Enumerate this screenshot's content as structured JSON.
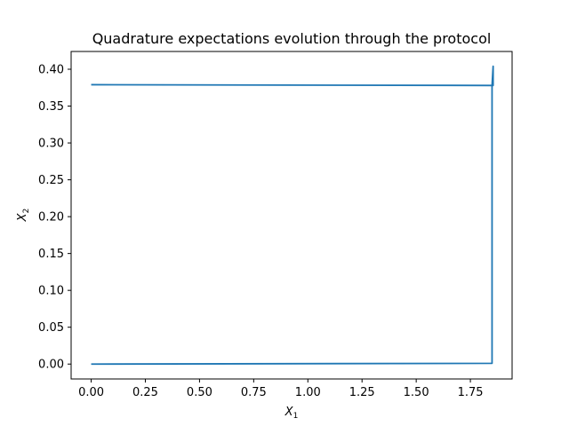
{
  "chart_data": {
    "type": "line",
    "title": "Quadrature expectations evolution through the protocol",
    "xlabel": {
      "base": "X",
      "subscript": "1"
    },
    "ylabel": {
      "base": "X",
      "subscript": "2"
    },
    "xlim": [
      -0.0925,
      1.9425
    ],
    "ylim": [
      -0.0202,
      0.4241
    ],
    "xticks": [
      "0.00",
      "0.25",
      "0.50",
      "0.75",
      "1.00",
      "1.25",
      "1.50",
      "1.75"
    ],
    "xtick_values": [
      0.0,
      0.25,
      0.5,
      0.75,
      1.0,
      1.25,
      1.5,
      1.75
    ],
    "yticks": [
      "0.00",
      "0.05",
      "0.10",
      "0.15",
      "0.20",
      "0.25",
      "0.30",
      "0.35",
      "0.40"
    ],
    "ytick_values": [
      0.0,
      0.05,
      0.1,
      0.15,
      0.2,
      0.25,
      0.3,
      0.35,
      0.4
    ],
    "grid": false,
    "legend": "none",
    "color": "#1f77b4",
    "series": [
      {
        "x": [
          0.0,
          1.85,
          1.85,
          1.855,
          1.855,
          1.85,
          0.0
        ],
        "y": [
          0.0,
          0.001,
          0.378,
          0.378,
          0.404,
          0.378,
          0.379
        ]
      }
    ]
  }
}
